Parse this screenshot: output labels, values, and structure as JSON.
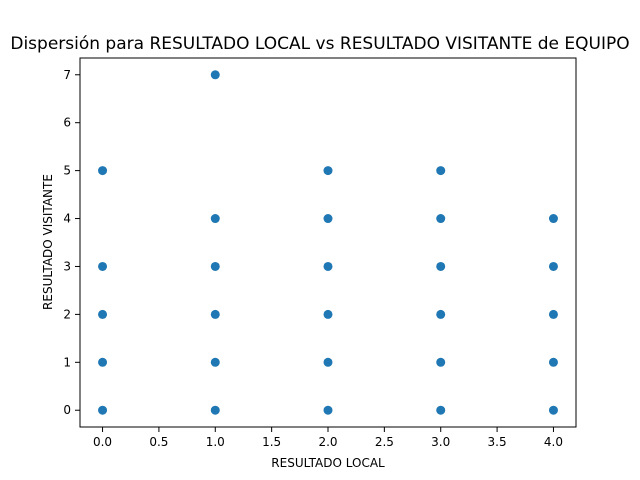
{
  "chart_data": {
    "type": "scatter",
    "title": "Dispersión para RESULTADO LOCAL vs RESULTADO VISITANTE de EQUIPO",
    "xlabel": "RESULTADO LOCAL",
    "ylabel": "RESULTADO VISITANTE",
    "xlim": [
      -0.2,
      4.2
    ],
    "ylim": [
      -0.35,
      7.35
    ],
    "xticks": [
      0.0,
      0.5,
      1.0,
      1.5,
      2.0,
      2.5,
      3.0,
      3.5,
      4.0
    ],
    "xtick_labels": [
      "0.0",
      "0.5",
      "1.0",
      "1.5",
      "2.0",
      "2.5",
      "3.0",
      "3.5",
      "4.0"
    ],
    "yticks": [
      0,
      1,
      2,
      3,
      4,
      5,
      6,
      7
    ],
    "ytick_labels": [
      "0",
      "1",
      "2",
      "3",
      "4",
      "5",
      "6",
      "7"
    ],
    "grid": false,
    "marker_color": "#1f77b4",
    "points": [
      [
        0,
        0
      ],
      [
        0,
        1
      ],
      [
        0,
        2
      ],
      [
        0,
        3
      ],
      [
        0,
        5
      ],
      [
        1,
        0
      ],
      [
        1,
        1
      ],
      [
        1,
        2
      ],
      [
        1,
        3
      ],
      [
        1,
        4
      ],
      [
        1,
        7
      ],
      [
        2,
        0
      ],
      [
        2,
        1
      ],
      [
        2,
        2
      ],
      [
        2,
        3
      ],
      [
        2,
        4
      ],
      [
        2,
        5
      ],
      [
        3,
        0
      ],
      [
        3,
        1
      ],
      [
        3,
        2
      ],
      [
        3,
        3
      ],
      [
        3,
        4
      ],
      [
        3,
        5
      ],
      [
        4,
        0
      ],
      [
        4,
        1
      ],
      [
        4,
        2
      ],
      [
        4,
        3
      ],
      [
        4,
        4
      ]
    ]
  }
}
